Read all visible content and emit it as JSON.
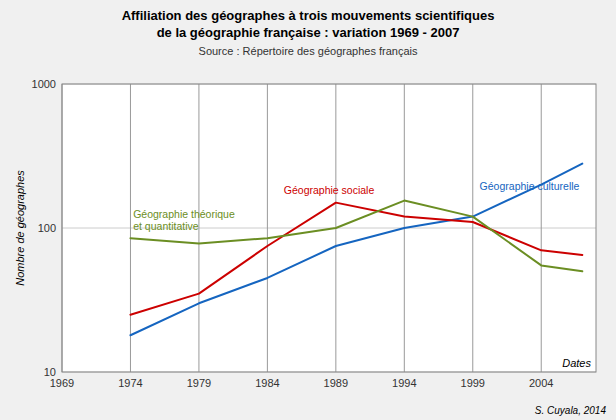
{
  "chart_data": {
    "type": "line",
    "title": "Affiliation des géographes à trois mouvements scientifiques\nde la géographie française : variation 1969 - 2007",
    "subtitle": "Source : Répertoire des géographes français",
    "xlabel": "Dates",
    "ylabel": "Nombre de géographes",
    "x": [
      1974,
      1979,
      1984,
      1989,
      1994,
      1999,
      2004,
      2007
    ],
    "series": [
      {
        "color": "#1565C0",
        "values": [
          18,
          30,
          45,
          75,
          100,
          120,
          200,
          280
        ]
      },
      {
        "color": "#CC0000",
        "values": [
          25,
          35,
          75,
          150,
          120,
          110,
          70,
          65
        ]
      },
      {
        "color": "#6B8E23",
        "values": [
          85,
          78,
          85,
          100,
          155,
          120,
          55,
          50
        ]
      }
    ],
    "xlim": [
      1969,
      2008
    ],
    "xticks": [
      1969,
      1974,
      1979,
      1984,
      1989,
      1994,
      1999,
      2004
    ],
    "ylim": [
      10,
      1000
    ],
    "yticks": [
      10,
      100,
      1000
    ],
    "log": "y",
    "grid": true,
    "annotations": [
      {
        "text": "Géographie culturelle",
        "x": 1999.5,
        "y": 175,
        "color": "#1565C0"
      },
      {
        "text": "Géographie sociale",
        "x": 1985.2,
        "y": 165,
        "color": "#CC0000"
      },
      {
        "text": "Géographie théorique\net quantitative",
        "x": 1974.2,
        "y": 92,
        "color": "#6B8E23"
      },
      {
        "text": "S. Cuyala, 2014"
      }
    ]
  }
}
